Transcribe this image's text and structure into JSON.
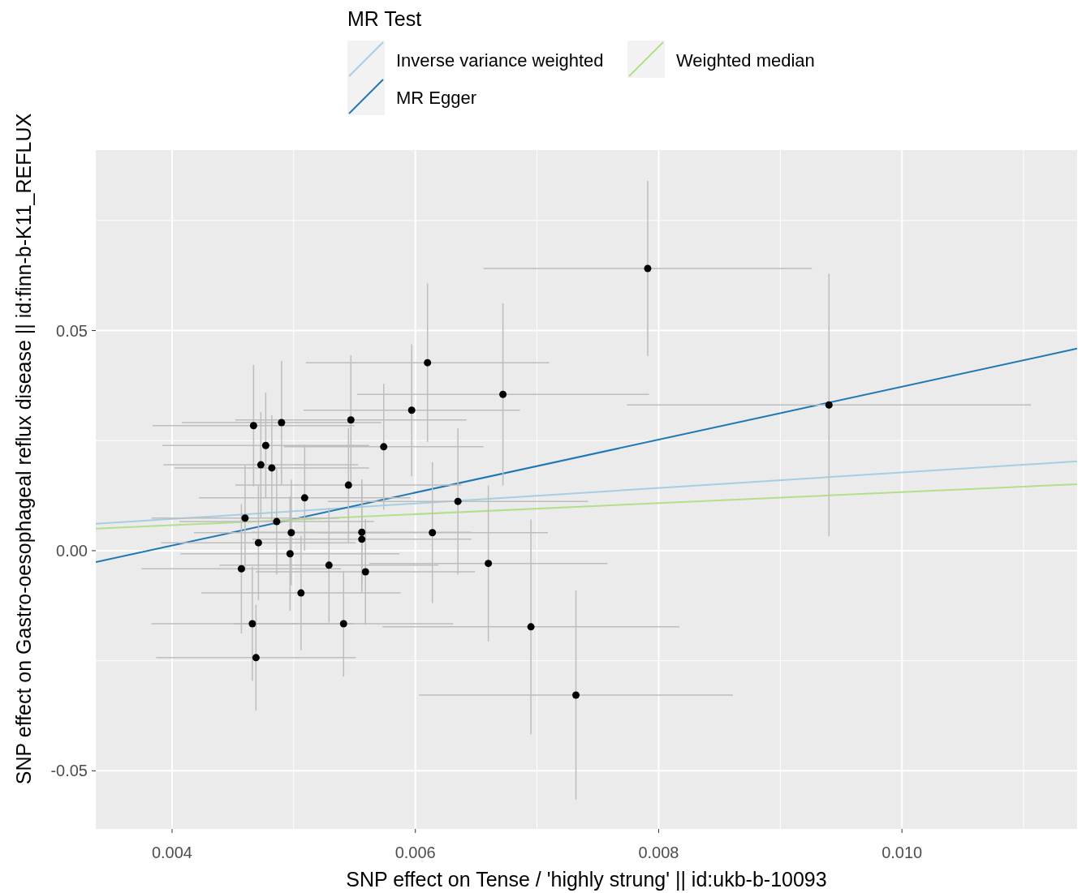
{
  "chart_data": {
    "type": "scatter",
    "xlabel": "SNP effect on Tense / 'highly strung' || id:ukb-b-10093",
    "ylabel": "SNP effect on Gastro-oesophageal reflux disease || id:finn-b-K11_REFLUX",
    "legend_title": "MR Test",
    "legend": "top",
    "grid": true,
    "xlim": [
      0.003373,
      0.01144
    ],
    "ylim": [
      -0.0632,
      0.091
    ],
    "xticks": [
      0.004,
      {
        "value": 0.005,
        "label": null
      },
      0.006,
      {
        "value": 0.007,
        "label": null
      },
      0.008,
      {
        "value": 0.009,
        "label": null
      },
      {
        "value": 0.01,
        "label": "0.010"
      },
      {
        "value": 0.011,
        "label": null
      }
    ],
    "yticks": [
      -0.05,
      {
        "value": -0.025,
        "label": null
      },
      {
        "value": 0,
        "label": "0.00"
      },
      {
        "value": 0.025,
        "label": null
      },
      0.05,
      {
        "value": 0.075,
        "label": null
      }
    ],
    "series": [
      {
        "color": "#000000",
        "marker": "circle",
        "x": [
          0.00791,
          0.0094,
          0.0061,
          0.00672,
          0.00597,
          0.00547,
          0.00467,
          0.0049,
          0.00477,
          0.00574,
          0.00473,
          0.00482,
          0.00545,
          0.00509,
          0.00635,
          0.0046,
          0.00486,
          0.00498,
          0.00556,
          0.00556,
          0.00614,
          0.00471,
          0.00497,
          0.00457,
          0.00529,
          0.0066,
          0.00559,
          0.00506,
          0.00466,
          0.00541,
          0.00695,
          0.00469,
          0.00732
        ],
        "values": [
          0.0641,
          0.0331,
          0.0427,
          0.0355,
          0.0319,
          0.0297,
          0.0284,
          0.0291,
          0.0239,
          0.0236,
          0.0195,
          0.0188,
          0.0149,
          0.012,
          0.0112,
          0.0074,
          0.0066,
          0.0041,
          0.0042,
          0.0026,
          0.0041,
          0.0018,
          -0.0007,
          -0.0041,
          -0.0033,
          -0.0029,
          -0.0048,
          -0.0096,
          -0.0166,
          -0.0166,
          -0.0173,
          -0.0243,
          -0.0328
        ],
        "xerrors": [
          0.00135,
          0.00166,
          0.001,
          0.0012,
          0.00089,
          0.00095,
          0.00083,
          0.00082,
          0.00085,
          0.00082,
          0.0008,
          0.0008,
          0.00093,
          0.00087,
          0.00107,
          0.00077,
          0.0008,
          0.0008,
          0.0009,
          0.0009,
          0.00095,
          0.0008,
          0.0009,
          0.00082,
          0.0009,
          0.00098,
          0.0009,
          0.00082,
          0.00083,
          0.0009,
          0.00122,
          0.00082,
          0.00129
        ],
        "errors": [
          0.0199,
          0.0298,
          0.018,
          0.0207,
          0.015,
          0.0147,
          0.0138,
          0.014,
          0.012,
          0.0143,
          0.012,
          0.012,
          0.013,
          0.012,
          0.0166,
          0.012,
          0.012,
          0.012,
          0.012,
          0.012,
          0.016,
          0.013,
          0.013,
          0.0147,
          0.013,
          0.0177,
          0.012,
          0.013,
          0.013,
          0.012,
          0.0244,
          0.012,
          0.0237
        ]
      },
      {
        "type": "line",
        "name": "Inverse variance weighted",
        "color": "#a6cee3",
        "x": [
          0.003373,
          0.01144
        ],
        "values": [
          0.0061,
          0.0203
        ]
      },
      {
        "type": "line",
        "name": "MR Egger",
        "color": "#1f78b4",
        "x": [
          0.003373,
          0.01144
        ],
        "values": [
          -0.0026,
          0.0459
        ]
      },
      {
        "type": "line",
        "name": "Weighted median",
        "color": "#b2df8a",
        "x": [
          0.003373,
          0.01144
        ],
        "values": [
          0.005,
          0.0151
        ]
      }
    ]
  }
}
